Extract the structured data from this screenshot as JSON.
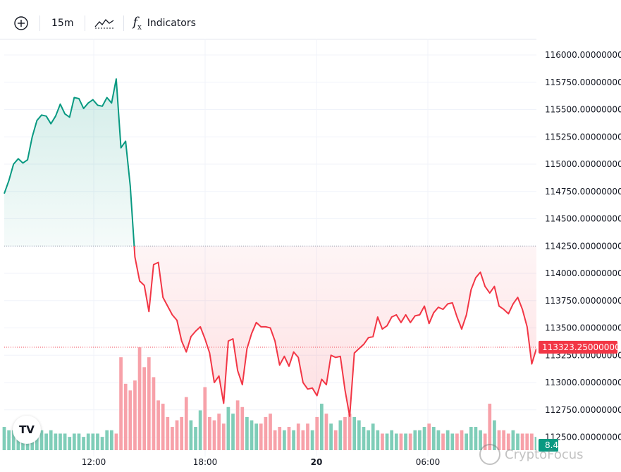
{
  "toolbar": {
    "add_icon": "plus-circle-icon",
    "interval": "15m",
    "chart_type_icon": "line-chart-icon",
    "indicators_label": "Indicators",
    "indicators_icon": "fx-icon"
  },
  "price_scale": {
    "labels": [
      "116000.00000000",
      "115750.00000000",
      "115500.00000000",
      "115250.00000000",
      "115000.00000000",
      "114750.00000000",
      "114500.00000000",
      "114250.00000000",
      "114000.00000000",
      "113750.00000000",
      "113500.00000000",
      "113250.00000000",
      "113000.00000000",
      "112750.00000000",
      "112500.00000000"
    ],
    "current_price": "113323.25000000",
    "volume_label": "8.4"
  },
  "time_axis": {
    "labels": [
      "12:00",
      "18:00",
      "20",
      "06:00"
    ]
  },
  "colors": {
    "up": "#089981",
    "down": "#f23645",
    "up_volume": "#7fcdb8",
    "down_volume": "#f7a1a9"
  },
  "logo": "TV",
  "watermark": "CryptoFocus",
  "chart_data": {
    "type": "line",
    "baseline": 114250,
    "ylim": [
      112440,
      116150
    ],
    "x_tick_labels": [
      "12:00",
      "18:00",
      "20",
      "06:00"
    ],
    "price": [
      114730,
      114850,
      115000,
      115050,
      115010,
      115040,
      115250,
      115400,
      115450,
      115440,
      115370,
      115440,
      115550,
      115460,
      115430,
      115610,
      115600,
      115510,
      115560,
      115590,
      115540,
      115530,
      115610,
      115560,
      115780,
      115150,
      115210,
      114800,
      114150,
      113930,
      113890,
      113650,
      114080,
      114100,
      113780,
      113700,
      113620,
      113570,
      113380,
      113280,
      113420,
      113470,
      113510,
      113400,
      113270,
      113000,
      113060,
      112810,
      113380,
      113400,
      113110,
      112980,
      113310,
      113450,
      113550,
      113510,
      113510,
      113500,
      113380,
      113160,
      113240,
      113150,
      113280,
      113230,
      113000,
      112940,
      112950,
      112880,
      113030,
      112980,
      113250,
      113230,
      113240,
      112930,
      112690,
      113270,
      113310,
      113350,
      113410,
      113420,
      113600,
      113490,
      113520,
      113600,
      113620,
      113550,
      113620,
      113550,
      113610,
      113620,
      113700,
      113540,
      113640,
      113690,
      113670,
      113720,
      113730,
      113600,
      113490,
      113620,
      113850,
      113960,
      114010,
      113880,
      113820,
      113880,
      113700,
      113670,
      113630,
      113720,
      113780,
      113670,
      113510,
      113170,
      113310
    ],
    "volume": [
      7,
      6,
      6,
      5,
      5,
      6,
      6,
      7,
      6,
      5,
      6,
      5,
      5,
      5,
      4,
      5,
      5,
      4,
      5,
      5,
      5,
      4,
      6,
      6,
      5,
      28,
      20,
      18,
      21,
      31,
      25,
      28,
      22,
      15,
      14,
      10,
      7,
      9,
      10,
      16,
      9,
      7,
      12,
      19,
      10,
      9,
      11,
      8,
      13,
      11,
      15,
      13,
      10,
      9,
      8,
      8,
      10,
      11,
      6,
      7,
      6,
      7,
      6,
      8,
      6,
      8,
      6,
      10,
      14,
      11,
      8,
      6,
      9,
      10,
      11,
      10,
      9,
      7,
      6,
      8,
      6,
      5,
      5,
      6,
      5,
      5,
      5,
      5,
      6,
      6,
      7,
      8,
      7,
      6,
      5,
      6,
      5,
      5,
      6,
      5,
      7,
      7,
      6,
      5,
      14,
      9,
      6,
      6,
      5,
      6,
      5,
      5,
      5,
      5,
      4
    ],
    "volume_up": [
      1,
      1,
      1,
      1,
      1,
      1,
      1,
      1,
      1,
      1,
      1,
      1,
      1,
      1,
      1,
      1,
      1,
      1,
      1,
      1,
      1,
      1,
      1,
      1,
      0,
      0,
      0,
      0,
      0,
      0,
      0,
      0,
      0,
      0,
      0,
      0,
      0,
      0,
      0,
      0,
      1,
      1,
      1,
      0,
      0,
      0,
      0,
      0,
      1,
      1,
      0,
      0,
      1,
      1,
      1,
      0,
      0,
      0,
      0,
      0,
      1,
      0,
      1,
      0,
      0,
      0,
      1,
      0,
      1,
      0,
      1,
      0,
      1,
      0,
      0,
      1,
      1,
      1,
      1,
      1,
      1,
      0,
      1,
      1,
      1,
      0,
      1,
      0,
      1,
      1,
      1,
      0,
      1,
      1,
      0,
      1,
      1,
      0,
      0,
      1,
      1,
      1,
      1,
      0,
      0,
      1,
      0,
      0,
      0,
      1,
      1,
      0,
      0,
      0,
      1
    ]
  }
}
